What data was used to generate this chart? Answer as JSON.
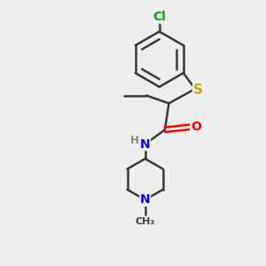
{
  "bg_color": "#eeeeee",
  "bond_color": "#3a3a3a",
  "bond_width": 1.8,
  "atom_colors": {
    "Cl": "#00aa00",
    "S": "#ccaa00",
    "O": "#ff0000",
    "N": "#0000ff",
    "H": "#888888",
    "C": "#3a3a3a"
  },
  "font_size": 9,
  "fig_size": [
    3.0,
    3.0
  ],
  "dpi": 100
}
